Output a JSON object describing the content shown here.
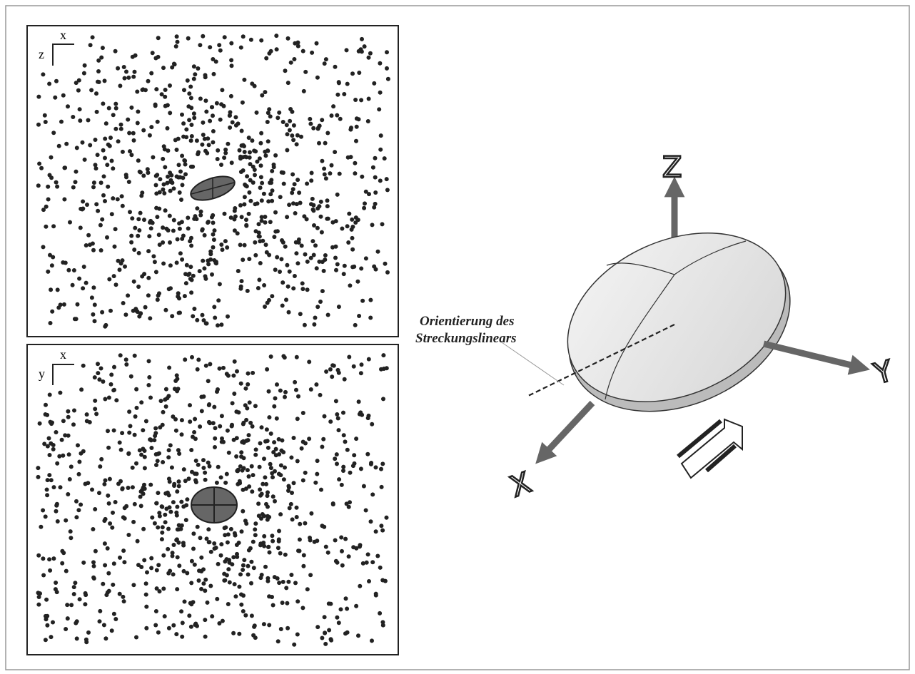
{
  "panels": [
    {
      "axis_h": "x",
      "axis_v": "z"
    },
    {
      "axis_h": "x",
      "axis_v": "y"
    }
  ],
  "axes_3d": {
    "z": "Z",
    "y": "Y",
    "x": "X"
  },
  "annotation": {
    "line1": "Orientierung des",
    "line2": "Streckungslinears"
  }
}
